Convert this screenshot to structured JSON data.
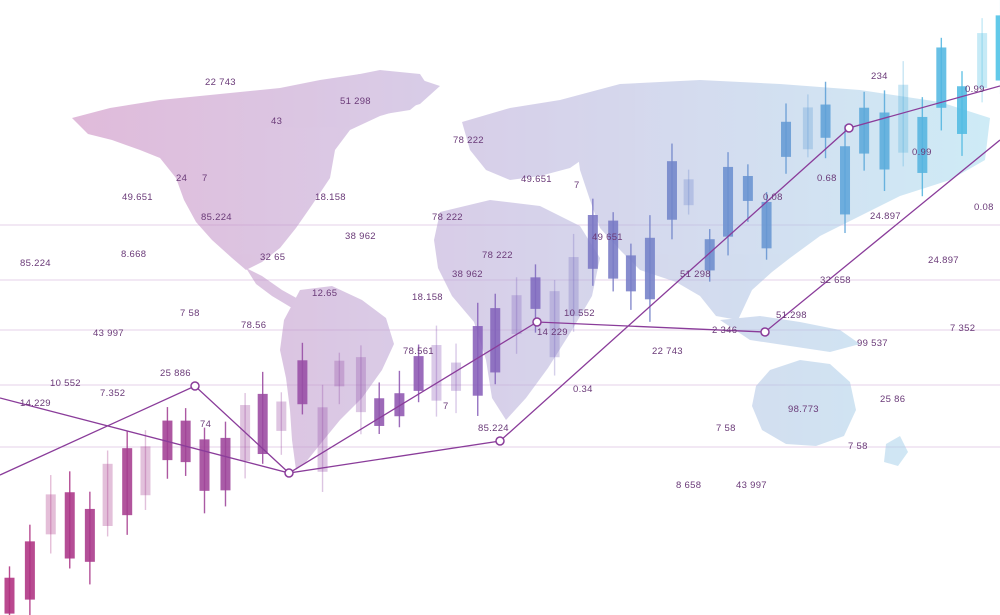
{
  "colors": {
    "gradient_start": "#b0307f",
    "gradient_mid": "#8a5cb8",
    "gradient_end": "#4cc3e6",
    "trend_line": "#8a3c9a",
    "grid_line": "#e4c9e6",
    "label": "#6a3a78"
  },
  "labels": [
    {
      "text": "22 743"
    },
    {
      "text": "51 298"
    },
    {
      "text": "43"
    },
    {
      "text": "49.651"
    },
    {
      "text": "24"
    },
    {
      "text": "7"
    },
    {
      "text": "85.224"
    },
    {
      "text": "18.158"
    },
    {
      "text": "78 222"
    },
    {
      "text": "49.651"
    },
    {
      "text": "7"
    },
    {
      "text": "78 222"
    },
    {
      "text": "38 962"
    },
    {
      "text": "85.224"
    },
    {
      "text": "8.668"
    },
    {
      "text": "32 65"
    },
    {
      "text": "7 58"
    },
    {
      "text": "78.56"
    },
    {
      "text": "12.65"
    },
    {
      "text": "43 997"
    },
    {
      "text": "18.158"
    },
    {
      "text": "78 222"
    },
    {
      "text": "38 962"
    },
    {
      "text": "49 651"
    },
    {
      "text": "51 298"
    },
    {
      "text": "10 552"
    },
    {
      "text": "14 229"
    },
    {
      "text": "78.561"
    },
    {
      "text": "10 552"
    },
    {
      "text": "25 886"
    },
    {
      "text": "7.352"
    },
    {
      "text": "14.229"
    },
    {
      "text": "22 743"
    },
    {
      "text": "0.34"
    },
    {
      "text": "85.224"
    },
    {
      "text": "7 58"
    },
    {
      "text": "8 658"
    },
    {
      "text": "43 997"
    },
    {
      "text": "98.773"
    },
    {
      "text": "25 86"
    },
    {
      "text": "7 58"
    },
    {
      "text": "99 537"
    },
    {
      "text": "7 352"
    },
    {
      "text": "51.298"
    },
    {
      "text": "2 346"
    },
    {
      "text": "32 658"
    },
    {
      "text": "24.897"
    },
    {
      "text": "24.897"
    },
    {
      "text": "0.08"
    },
    {
      "text": "0.99"
    },
    {
      "text": "0.08"
    },
    {
      "text": "0.99"
    },
    {
      "text": "234"
    },
    {
      "text": "0.68"
    },
    {
      "text": "7"
    },
    {
      "text": "74"
    }
  ]
}
